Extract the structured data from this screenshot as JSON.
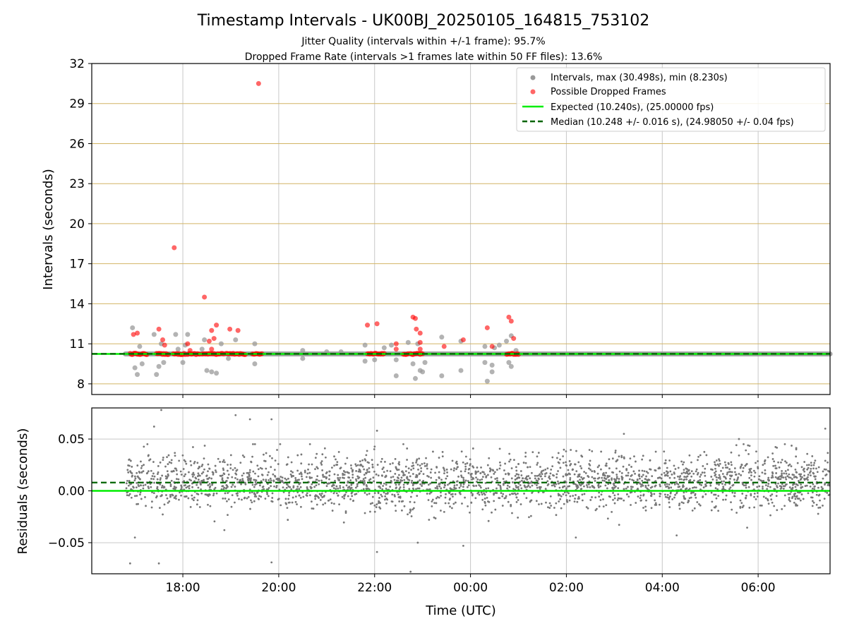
{
  "chart_data": {
    "type": "scatter",
    "title": "Timestamp Intervals - UK00BJ_20250105_164815_753102",
    "subtitles": [
      "Jitter Quality (intervals within +/-1 frame): 95.7%",
      "Dropped Frame Rate (intervals >1 frames late within 50 FF files): 13.6%"
    ],
    "xlabel": "Time (UTC)",
    "x_axis": {
      "type": "time",
      "range_hours": [
        16.1,
        31.5
      ],
      "ticks": [
        18,
        20,
        22,
        24,
        26,
        28,
        30
      ],
      "tick_labels": [
        "18:00",
        "20:00",
        "22:00",
        "00:00",
        "02:00",
        "04:00",
        "06:00"
      ]
    },
    "panels": [
      {
        "name": "intervals",
        "ylabel": "Intervals (seconds)",
        "ylim": [
          7.2,
          32
        ],
        "yticks": [
          8,
          11,
          14,
          17,
          20,
          23,
          26,
          29,
          32
        ],
        "ytick_labels": [
          "8",
          "11",
          "14",
          "17",
          "20",
          "23",
          "26",
          "29",
          "32"
        ],
        "grid": "horizontal goldenrod, vertical gray",
        "legend_position": "top-right",
        "series": [
          {
            "name": "Intervals, max (30.498s), min (8.230s)",
            "kind": "scatter",
            "color": "#999999",
            "baseline_band": {
              "start": 16.8,
              "end": 31.5,
              "value": 10.24
            },
            "points": [
              [
                16.95,
                12.2
              ],
              [
                17.0,
                9.2
              ],
              [
                17.05,
                8.7
              ],
              [
                17.1,
                10.8
              ],
              [
                17.15,
                9.5
              ],
              [
                17.4,
                11.7
              ],
              [
                17.45,
                8.7
              ],
              [
                17.5,
                9.3
              ],
              [
                17.55,
                11.0
              ],
              [
                17.6,
                9.6
              ],
              [
                17.85,
                11.7
              ],
              [
                17.9,
                10.6
              ],
              [
                18.0,
                9.6
              ],
              [
                18.05,
                10.9
              ],
              [
                18.1,
                11.7
              ],
              [
                18.4,
                10.6
              ],
              [
                18.45,
                11.3
              ],
              [
                18.5,
                9.0
              ],
              [
                18.6,
                8.9
              ],
              [
                18.7,
                8.8
              ],
              [
                18.8,
                11.0
              ],
              [
                18.95,
                9.9
              ],
              [
                19.1,
                11.3
              ],
              [
                19.5,
                11.0
              ],
              [
                19.5,
                9.5
              ],
              [
                20.5,
                10.5
              ],
              [
                20.5,
                9.9
              ],
              [
                21.0,
                10.4
              ],
              [
                21.3,
                10.4
              ],
              [
                21.8,
                10.9
              ],
              [
                21.8,
                9.7
              ],
              [
                22.0,
                9.8
              ],
              [
                22.2,
                10.7
              ],
              [
                22.35,
                10.9
              ],
              [
                22.45,
                9.8
              ],
              [
                22.45,
                8.6
              ],
              [
                22.7,
                11.1
              ],
              [
                22.8,
                9.5
              ],
              [
                22.85,
                8.4
              ],
              [
                22.9,
                11.0
              ],
              [
                22.95,
                9.0
              ],
              [
                23.0,
                8.9
              ],
              [
                23.05,
                9.6
              ],
              [
                23.4,
                11.5
              ],
              [
                23.4,
                8.6
              ],
              [
                23.8,
                11.2
              ],
              [
                23.8,
                9.0
              ],
              [
                24.3,
                10.8
              ],
              [
                24.3,
                9.6
              ],
              [
                24.35,
                8.2
              ],
              [
                24.45,
                9.4
              ],
              [
                24.45,
                8.9
              ],
              [
                24.5,
                10.7
              ],
              [
                24.6,
                10.9
              ],
              [
                24.75,
                11.2
              ],
              [
                24.85,
                9.3
              ],
              [
                24.85,
                11.6
              ],
              [
                24.8,
                9.6
              ],
              [
                24.95,
                10.5
              ]
            ]
          },
          {
            "name": "Possible Dropped Frames",
            "kind": "scatter",
            "color": "#ff0000",
            "points": [
              [
                16.97,
                11.7
              ],
              [
                17.05,
                11.8
              ],
              [
                17.5,
                12.1
              ],
              [
                17.58,
                11.3
              ],
              [
                17.62,
                10.9
              ],
              [
                17.82,
                18.2
              ],
              [
                18.1,
                11.0
              ],
              [
                18.15,
                10.5
              ],
              [
                18.45,
                14.5
              ],
              [
                18.55,
                11.2
              ],
              [
                18.6,
                12.0
              ],
              [
                18.65,
                11.4
              ],
              [
                18.7,
                12.4
              ],
              [
                18.6,
                10.6
              ],
              [
                18.98,
                12.1
              ],
              [
                19.15,
                12.0
              ],
              [
                19.58,
                30.5
              ],
              [
                21.85,
                12.4
              ],
              [
                22.05,
                12.5
              ],
              [
                22.45,
                11.0
              ],
              [
                22.45,
                10.6
              ],
              [
                22.8,
                13.0
              ],
              [
                22.85,
                12.9
              ],
              [
                22.87,
                12.1
              ],
              [
                22.95,
                11.8
              ],
              [
                22.95,
                11.1
              ],
              [
                22.95,
                10.6
              ],
              [
                23.45,
                10.8
              ],
              [
                23.85,
                11.3
              ],
              [
                24.35,
                12.2
              ],
              [
                24.45,
                10.8
              ],
              [
                24.8,
                13.0
              ],
              [
                24.85,
                12.7
              ],
              [
                24.9,
                11.4
              ]
            ],
            "clusters": [
              [
                16.9,
                17.25
              ],
              [
                17.45,
                17.7
              ],
              [
                17.8,
                18.05
              ],
              [
                18.1,
                18.35
              ],
              [
                18.4,
                18.85
              ],
              [
                18.9,
                19.3
              ],
              [
                19.45,
                19.65
              ],
              [
                21.85,
                22.2
              ],
              [
                22.6,
                22.7
              ],
              [
                22.75,
                23.0
              ],
              [
                24.75,
                25.0
              ]
            ]
          },
          {
            "name": "Expected (10.240s), (25.00000 fps)",
            "kind": "hline",
            "value": 10.24,
            "color": "#00ee00",
            "style": "solid"
          },
          {
            "name": "Median (10.248 +/- 0.016 s), (24.98050 +/- 0.04 fps)",
            "kind": "hline",
            "value": 10.248,
            "color": "#006400",
            "style": "dashed"
          }
        ]
      },
      {
        "name": "residuals",
        "ylabel": "Residuals (seconds)",
        "ylim": [
          -0.08,
          0.08
        ],
        "yticks": [
          -0.05,
          0,
          0.05
        ],
        "ytick_labels": [
          "−0.05",
          "0.00",
          "0.05"
        ],
        "grid": "gray",
        "series": [
          {
            "kind": "scatter",
            "color": "#777777",
            "cloud": {
              "x_start": 16.8,
              "x_end": 31.5,
              "center": 0.008,
              "spread": 0.013
            },
            "outliers": [
              [
                16.9,
                -0.07
              ],
              [
                17.0,
                -0.045
              ],
              [
                17.5,
                -0.07
              ],
              [
                17.55,
                0.078
              ],
              [
                17.4,
                0.062
              ],
              [
                19.1,
                0.073
              ],
              [
                19.4,
                0.069
              ],
              [
                19.85,
                0.069
              ],
              [
                19.85,
                -0.069
              ],
              [
                22.05,
                0.058
              ],
              [
                22.05,
                -0.059
              ],
              [
                22.75,
                -0.078
              ],
              [
                22.9,
                -0.05
              ],
              [
                23.85,
                -0.053
              ],
              [
                27.2,
                0.055
              ],
              [
                28.3,
                -0.043
              ],
              [
                29.6,
                0.05
              ],
              [
                31.4,
                0.06
              ]
            ]
          },
          {
            "kind": "hline",
            "value": 0,
            "color": "#00ee00",
            "style": "solid"
          },
          {
            "kind": "hline",
            "value": 0.008,
            "color": "#006400",
            "style": "dashed"
          }
        ]
      }
    ]
  }
}
